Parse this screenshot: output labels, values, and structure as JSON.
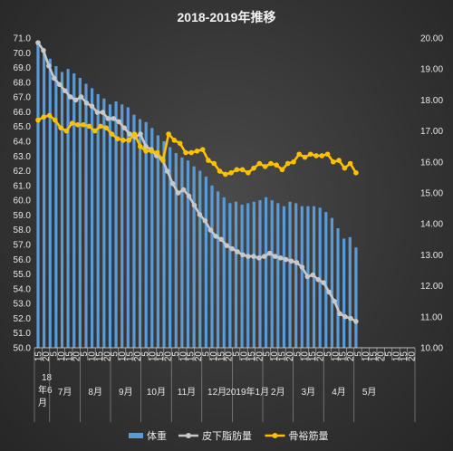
{
  "chart_data": {
    "type": "bar+line",
    "title": "2018-2019年推移",
    "y_left": {
      "range": [
        50.0,
        71.0
      ],
      "ticks": [
        "50.0",
        "51.0",
        "52.0",
        "53.0",
        "54.0",
        "55.0",
        "56.0",
        "57.0",
        "58.0",
        "59.0",
        "60.0",
        "61.0",
        "62.0",
        "63.0",
        "64.0",
        "65.0",
        "66.0",
        "67.0",
        "68.0",
        "69.0",
        "70.0",
        "71.0"
      ]
    },
    "y_right": {
      "range": [
        10.0,
        20.0
      ],
      "ticks": [
        "10.00",
        "11.00",
        "12.00",
        "13.00",
        "14.00",
        "15.00",
        "16.00",
        "17.00",
        "18.00",
        "19.00",
        "20.00"
      ]
    },
    "x_day_ticks": [
      "15",
      "20",
      "5",
      "10",
      "15",
      "20",
      "5",
      "10",
      "15",
      "20",
      "5",
      "10",
      "15",
      "20",
      "5",
      "10",
      "15",
      "20",
      "5",
      "10",
      "15",
      "20",
      "5",
      "10",
      "15",
      "20",
      "5",
      "10",
      "15",
      "20",
      "5",
      "10",
      "15",
      "20",
      "5",
      "10",
      "15",
      "20",
      "5",
      "10",
      "15",
      "20",
      "5",
      "10",
      "15",
      "20",
      "5",
      "10",
      "15",
      "20"
    ],
    "months": [
      {
        "label": "18年6月"
      },
      {
        "label": "7月"
      },
      {
        "label": "8月"
      },
      {
        "label": "9月"
      },
      {
        "label": "10月"
      },
      {
        "label": "11月"
      },
      {
        "label": "12月"
      },
      {
        "label": "2019年1月"
      },
      {
        "label": "2月"
      },
      {
        "label": "3月"
      },
      {
        "label": "4月"
      },
      {
        "label": "5月"
      }
    ],
    "series": [
      {
        "name": "体重",
        "type": "bar",
        "axis": "left",
        "color": "#5b9bd5",
        "values": [
          70.8,
          70.2,
          69.6,
          69.1,
          68.7,
          68.9,
          68.6,
          68.3,
          67.9,
          67.6,
          67.2,
          66.9,
          66.5,
          66.7,
          66.5,
          66.3,
          65.8,
          65.5,
          65.3,
          64.9,
          64.4,
          64.0,
          63.6,
          63.2,
          62.9,
          62.7,
          62.3,
          62.0,
          61.6,
          61.0,
          60.6,
          60.2,
          59.8,
          59.9,
          59.7,
          59.8,
          59.9,
          60.0,
          60.2,
          60.0,
          59.8,
          59.6,
          59.9,
          59.8,
          59.6,
          59.6,
          59.6,
          59.5,
          59.2,
          58.8,
          58.1,
          57.4,
          57.5,
          56.8
        ]
      },
      {
        "name": "皮下脂肪量",
        "type": "line",
        "axis": "right",
        "color": "#c8c8c8",
        "values": [
          19.85,
          19.6,
          19.1,
          18.7,
          18.5,
          18.3,
          18.1,
          18.0,
          18.1,
          17.9,
          17.8,
          17.6,
          17.6,
          17.4,
          17.4,
          17.3,
          17.1,
          16.9,
          16.8,
          16.9,
          16.5,
          16.4,
          16.2,
          16.1,
          15.7,
          15.3,
          15.0,
          15.1,
          14.9,
          14.6,
          14.3,
          14.1,
          13.8,
          13.6,
          13.5,
          13.3,
          13.2,
          13.1,
          13.0,
          12.95,
          12.95,
          12.9,
          12.95,
          13.05,
          12.95,
          12.9,
          12.85,
          12.8,
          12.75,
          12.6,
          12.3,
          12.35,
          12.2,
          12.1,
          11.8,
          11.5,
          11.1,
          11.0,
          10.95,
          10.85
        ]
      },
      {
        "name": "骨裕筋量",
        "type": "line",
        "axis": "right",
        "color": "#ffc000",
        "values": [
          17.35,
          17.45,
          17.5,
          17.35,
          17.1,
          17.0,
          17.25,
          17.2,
          17.2,
          17.15,
          17.0,
          17.15,
          17.1,
          16.9,
          16.75,
          16.7,
          16.7,
          16.9,
          16.5,
          16.35,
          16.35,
          16.3,
          16.05,
          16.9,
          16.7,
          16.6,
          16.3,
          16.3,
          16.35,
          16.4,
          16.05,
          15.95,
          15.7,
          15.6,
          15.65,
          15.75,
          15.75,
          15.65,
          15.8,
          15.95,
          15.85,
          15.95,
          15.9,
          15.75,
          15.95,
          16.0,
          16.25,
          16.15,
          16.25,
          16.2,
          16.2,
          16.25,
          16.0,
          16.05,
          15.8,
          15.95,
          15.65
        ]
      }
    ],
    "legend": {
      "position": "bottom",
      "entries": [
        "体重",
        "皮下脂肪量",
        "骨裕筋量"
      ]
    },
    "grid": false
  }
}
